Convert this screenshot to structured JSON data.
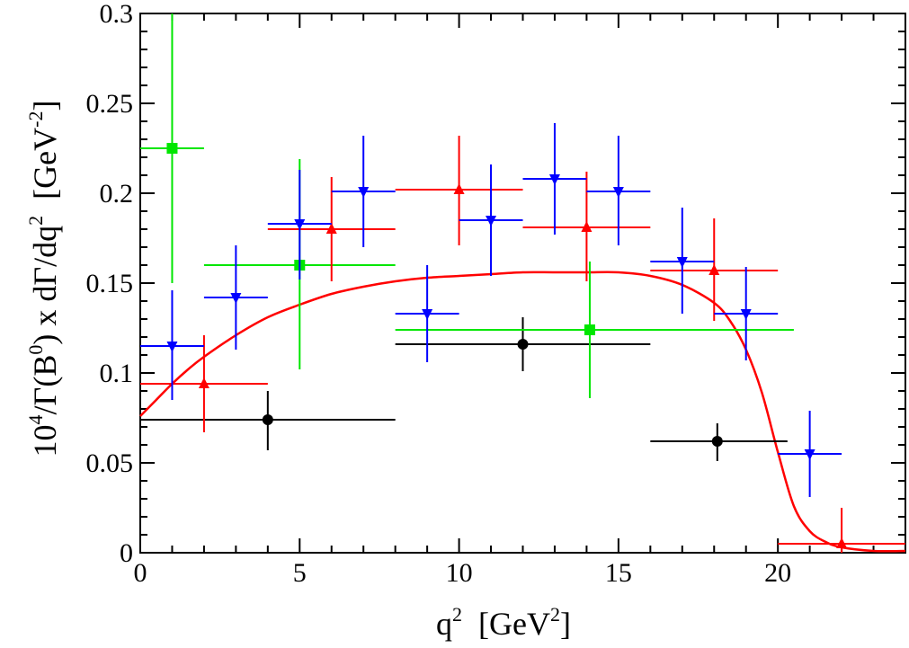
{
  "chart_data": {
    "type": "scatter",
    "title": "",
    "xlabel": {
      "base": "q",
      "sup": "2",
      "unit_open": "  [GeV",
      "unit_sup": "2",
      "unit_close": "]"
    },
    "ylabel": {
      "base": "10",
      "sup1": "4",
      "mid": "/Γ(B",
      "sup2": "0",
      "mid2": ") x dΓ/dq",
      "sup3": "2",
      "unit_open": "  [GeV",
      "unit_sup": "-2",
      "unit_close": "]"
    },
    "xlim": [
      0,
      24
    ],
    "ylim": [
      0,
      0.3
    ],
    "grid": false,
    "x_ticks": [
      {
        "value": 0,
        "label": "0"
      },
      {
        "value": 5,
        "label": "5"
      },
      {
        "value": 10,
        "label": "10"
      },
      {
        "value": 15,
        "label": "15"
      },
      {
        "value": 20,
        "label": "20"
      }
    ],
    "y_ticks": [
      {
        "value": 0,
        "label": "0"
      },
      {
        "value": 0.05,
        "label": "0.05"
      },
      {
        "value": 0.1,
        "label": "0.1"
      },
      {
        "value": 0.15,
        "label": "0.15"
      },
      {
        "value": 0.2,
        "label": "0.2"
      },
      {
        "value": 0.25,
        "label": "0.25"
      },
      {
        "value": 0.3,
        "label": "0.3"
      }
    ],
    "series": [
      {
        "name": "black circles",
        "color": "#000000",
        "marker": "circle",
        "points": [
          {
            "x": 4.0,
            "xlo": 0,
            "xhi": 8,
            "y": 0.074,
            "ylo": 0.057,
            "yhi": 0.09
          },
          {
            "x": 12.0,
            "xlo": 8,
            "xhi": 16,
            "y": 0.116,
            "ylo": 0.101,
            "yhi": 0.131
          },
          {
            "x": 18.1,
            "xlo": 16,
            "xhi": 20.3,
            "y": 0.062,
            "ylo": 0.051,
            "yhi": 0.072
          }
        ]
      },
      {
        "name": "green squares",
        "color": "#00e600",
        "marker": "square",
        "points": [
          {
            "x": 1.0,
            "xlo": 0,
            "xhi": 2,
            "y": 0.225,
            "ylo": 0.15,
            "yhi": 0.3
          },
          {
            "x": 5.0,
            "xlo": 2,
            "xhi": 8,
            "y": 0.16,
            "ylo": 0.102,
            "yhi": 0.219
          },
          {
            "x": 14.1,
            "xlo": 8,
            "xhi": 20.5,
            "y": 0.124,
            "ylo": 0.086,
            "yhi": 0.162
          }
        ]
      },
      {
        "name": "red triangles",
        "color": "#ff0000",
        "marker": "triangle-up",
        "points": [
          {
            "x": 2.0,
            "xlo": 0,
            "xhi": 4,
            "y": 0.094,
            "ylo": 0.067,
            "yhi": 0.121
          },
          {
            "x": 6.0,
            "xlo": 4,
            "xhi": 8,
            "y": 0.18,
            "ylo": 0.151,
            "yhi": 0.209
          },
          {
            "x": 10.0,
            "xlo": 8,
            "xhi": 12,
            "y": 0.202,
            "ylo": 0.171,
            "yhi": 0.232
          },
          {
            "x": 14.0,
            "xlo": 12,
            "xhi": 16,
            "y": 0.181,
            "ylo": 0.151,
            "yhi": 0.212
          },
          {
            "x": 18.0,
            "xlo": 16,
            "xhi": 20,
            "y": 0.157,
            "ylo": 0.129,
            "yhi": 0.186
          },
          {
            "x": 22.0,
            "xlo": 20,
            "xhi": 24,
            "y": 0.005,
            "ylo": 0.0,
            "yhi": 0.025
          }
        ]
      },
      {
        "name": "blue triangles",
        "color": "#0000ff",
        "marker": "triangle-down",
        "points": [
          {
            "x": 1.0,
            "xlo": 0,
            "xhi": 2,
            "y": 0.115,
            "ylo": 0.085,
            "yhi": 0.146
          },
          {
            "x": 3.0,
            "xlo": 2,
            "xhi": 4,
            "y": 0.142,
            "ylo": 0.113,
            "yhi": 0.171
          },
          {
            "x": 5.0,
            "xlo": 4,
            "xhi": 6,
            "y": 0.183,
            "ylo": 0.152,
            "yhi": 0.213
          },
          {
            "x": 7.0,
            "xlo": 6,
            "xhi": 8,
            "y": 0.201,
            "ylo": 0.17,
            "yhi": 0.232
          },
          {
            "x": 9.0,
            "xlo": 8,
            "xhi": 10,
            "y": 0.133,
            "ylo": 0.106,
            "yhi": 0.16
          },
          {
            "x": 11.0,
            "xlo": 10,
            "xhi": 12,
            "y": 0.185,
            "ylo": 0.154,
            "yhi": 0.216
          },
          {
            "x": 13.0,
            "xlo": 12,
            "xhi": 14,
            "y": 0.208,
            "ylo": 0.177,
            "yhi": 0.239
          },
          {
            "x": 15.0,
            "xlo": 14,
            "xhi": 16,
            "y": 0.201,
            "ylo": 0.171,
            "yhi": 0.232
          },
          {
            "x": 17.0,
            "xlo": 16,
            "xhi": 18,
            "y": 0.162,
            "ylo": 0.133,
            "yhi": 0.192
          },
          {
            "x": 19.0,
            "xlo": 18,
            "xhi": 20,
            "y": 0.133,
            "ylo": 0.107,
            "yhi": 0.159
          },
          {
            "x": 21.0,
            "xlo": 20,
            "xhi": 22,
            "y": 0.055,
            "ylo": 0.031,
            "yhi": 0.079
          }
        ]
      }
    ],
    "curve": {
      "name": "red curve",
      "color": "#ff0000",
      "x": [
        0,
        0.5,
        1,
        1.5,
        2,
        3,
        4,
        5,
        6,
        7,
        8,
        9,
        10,
        11,
        12,
        13,
        14,
        15,
        16,
        17,
        18,
        18.5,
        19,
        19.5,
        20,
        20.5,
        21,
        21.5,
        22,
        23,
        24
      ],
      "y": [
        0.076,
        0.085,
        0.094,
        0.102,
        0.109,
        0.121,
        0.131,
        0.138,
        0.144,
        0.148,
        0.151,
        0.153,
        0.154,
        0.155,
        0.156,
        0.156,
        0.156,
        0.156,
        0.154,
        0.149,
        0.139,
        0.129,
        0.113,
        0.089,
        0.056,
        0.026,
        0.012,
        0.006,
        0.003,
        0.001,
        0.001
      ]
    }
  }
}
